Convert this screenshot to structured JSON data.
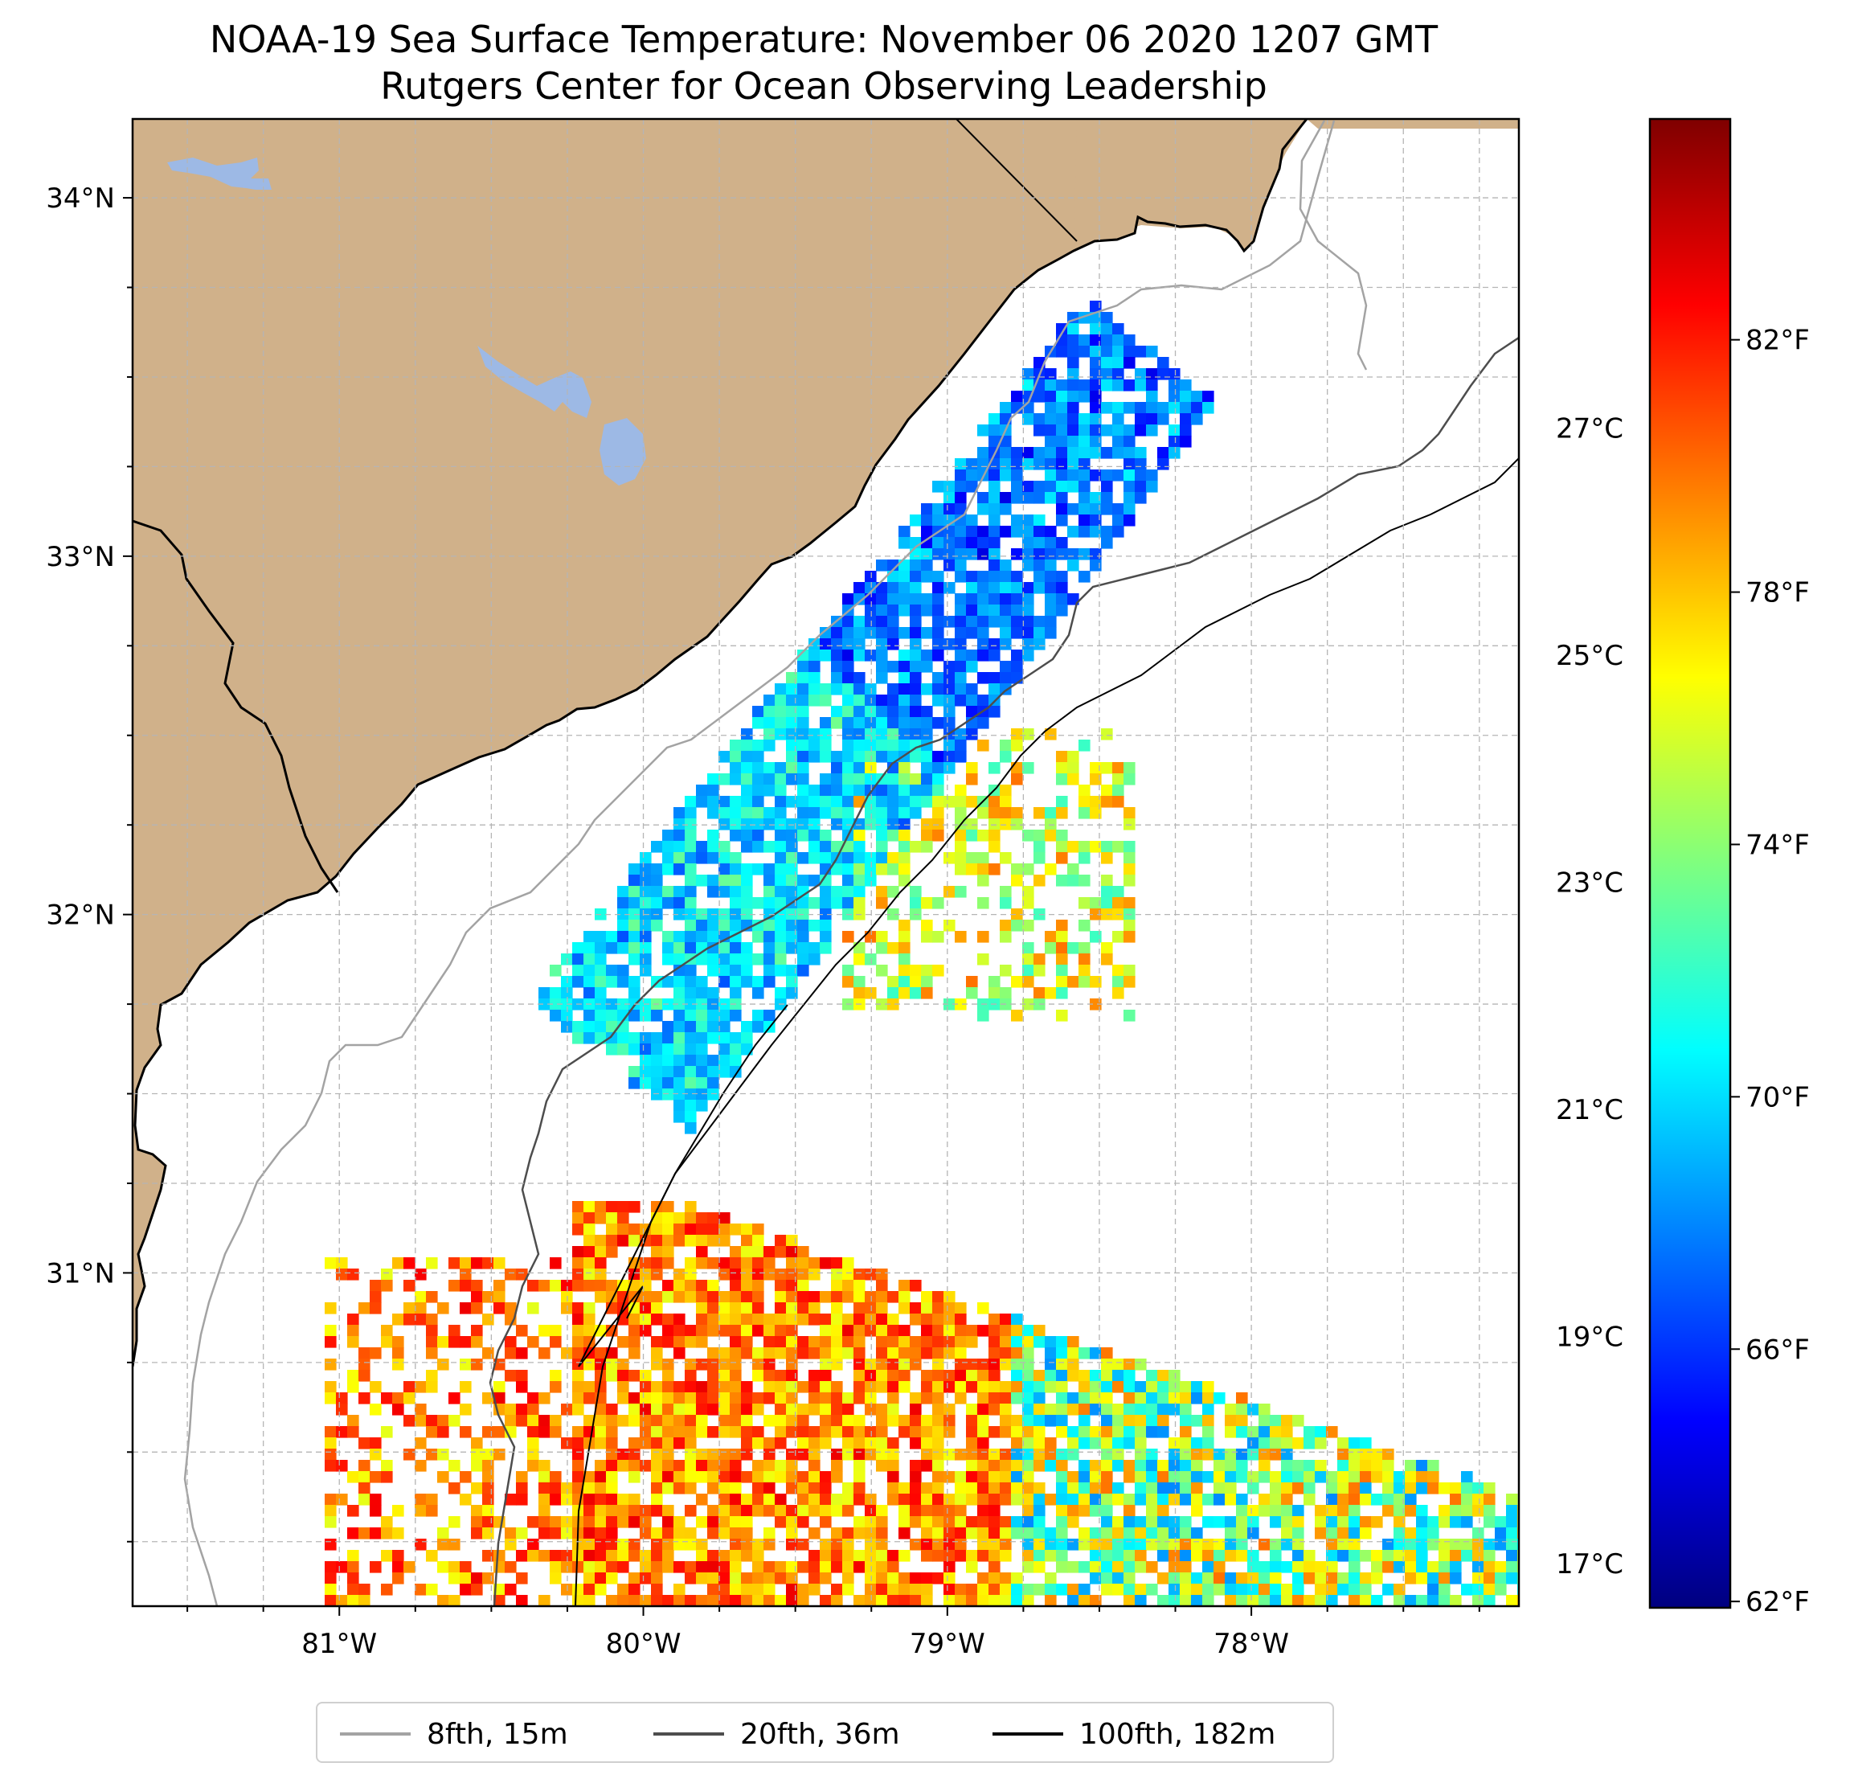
{
  "title": {
    "line1": "NOAA-19 Sea Surface Temperature: November 06 2020 1207 GMT",
    "line2": "Rutgers Center for Ocean Observing Leadership"
  },
  "colors": {
    "land": "#d0b18a",
    "lakes": "#9db9e5",
    "ocean": "#ffffff",
    "coastline": "#000000",
    "isobath_8fth": "#a3a3a3",
    "isobath_20fth": "#4d4d4d",
    "isobath_100fth": "#000000",
    "grid": "#b5b5b5",
    "colormap": [
      "#00007f",
      "#0000ff",
      "#007fff",
      "#00ffff",
      "#7fff7f",
      "#ffff00",
      "#ff7f00",
      "#ff0000",
      "#7f0000"
    ]
  },
  "map": {
    "lon_range": [
      -81.68,
      -77.12
    ],
    "lat_range": [
      30.07,
      34.22
    ],
    "lon_ticks": [
      {
        "value": -81,
        "label": "81°W"
      },
      {
        "value": -80,
        "label": "80°W"
      },
      {
        "value": -79,
        "label": "79°W"
      },
      {
        "value": -78,
        "label": "78°W"
      }
    ],
    "lat_ticks": [
      {
        "value": 31,
        "label": "31°N"
      },
      {
        "value": 32,
        "label": "32°N"
      },
      {
        "value": 33,
        "label": "33°N"
      },
      {
        "value": 34,
        "label": "34°N"
      }
    ],
    "gridlines": "dashed, every 0.25°"
  },
  "colorbar": {
    "range_f": [
      61.9,
      85.5
    ],
    "fahrenheit_ticks": [
      {
        "value": 62,
        "label": "62°F"
      },
      {
        "value": 66,
        "label": "66°F"
      },
      {
        "value": 70,
        "label": "70°F"
      },
      {
        "value": 74,
        "label": "74°F"
      },
      {
        "value": 78,
        "label": "78°F"
      },
      {
        "value": 82,
        "label": "82°F"
      }
    ],
    "celsius_ticks": [
      {
        "value": 17,
        "label": "17°C"
      },
      {
        "value": 19,
        "label": "19°C"
      },
      {
        "value": 21,
        "label": "21°C"
      },
      {
        "value": 23,
        "label": "23°C"
      },
      {
        "value": 25,
        "label": "25°C"
      },
      {
        "value": 27,
        "label": "27°C"
      }
    ]
  },
  "legend": {
    "items": [
      {
        "label": "8fth, 15m",
        "color": "#a3a3a3"
      },
      {
        "label": "20fth, 36m",
        "color": "#4d4d4d"
      },
      {
        "label": "100fth, 182m",
        "color": "#000000"
      }
    ],
    "placement": "bottom-center"
  }
}
